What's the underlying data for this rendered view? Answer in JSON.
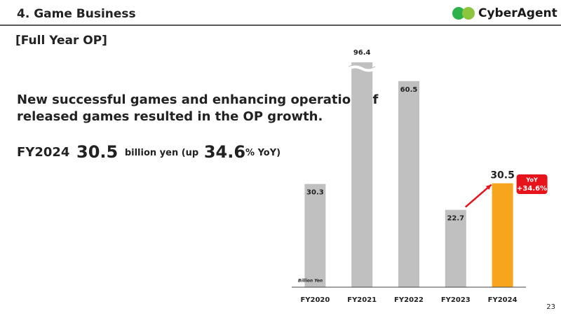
{
  "header": {
    "title": "4. Game Business",
    "logo": "CyberAgent"
  },
  "subtitle": "[Full Year OP]",
  "headline": [
    "New successful games and enhancing operation of",
    "released games resulted in the OP growth."
  ],
  "highlight": {
    "label": "FY2024",
    "value": "30.5",
    "unit": "billion yen (up",
    "growth": "34.6",
    "suffix": "% YoY)"
  },
  "page_number": "23",
  "chart_data": {
    "type": "bar",
    "unit_label": "Billion Yen",
    "categories": [
      "FY2020",
      "FY2021",
      "FY2022",
      "FY2023",
      "FY2024"
    ],
    "values": [
      30.3,
      96.4,
      60.5,
      22.7,
      30.5
    ],
    "colors": [
      "#c0c0c0",
      "#c0c0c0",
      "#c0c0c0",
      "#c0c0c0",
      "#f7a51c"
    ],
    "ylim": [
      0,
      66
    ],
    "axis_break": true,
    "callout": {
      "title": "YoY",
      "text": "+34.6%",
      "color": "#e8141c"
    }
  }
}
